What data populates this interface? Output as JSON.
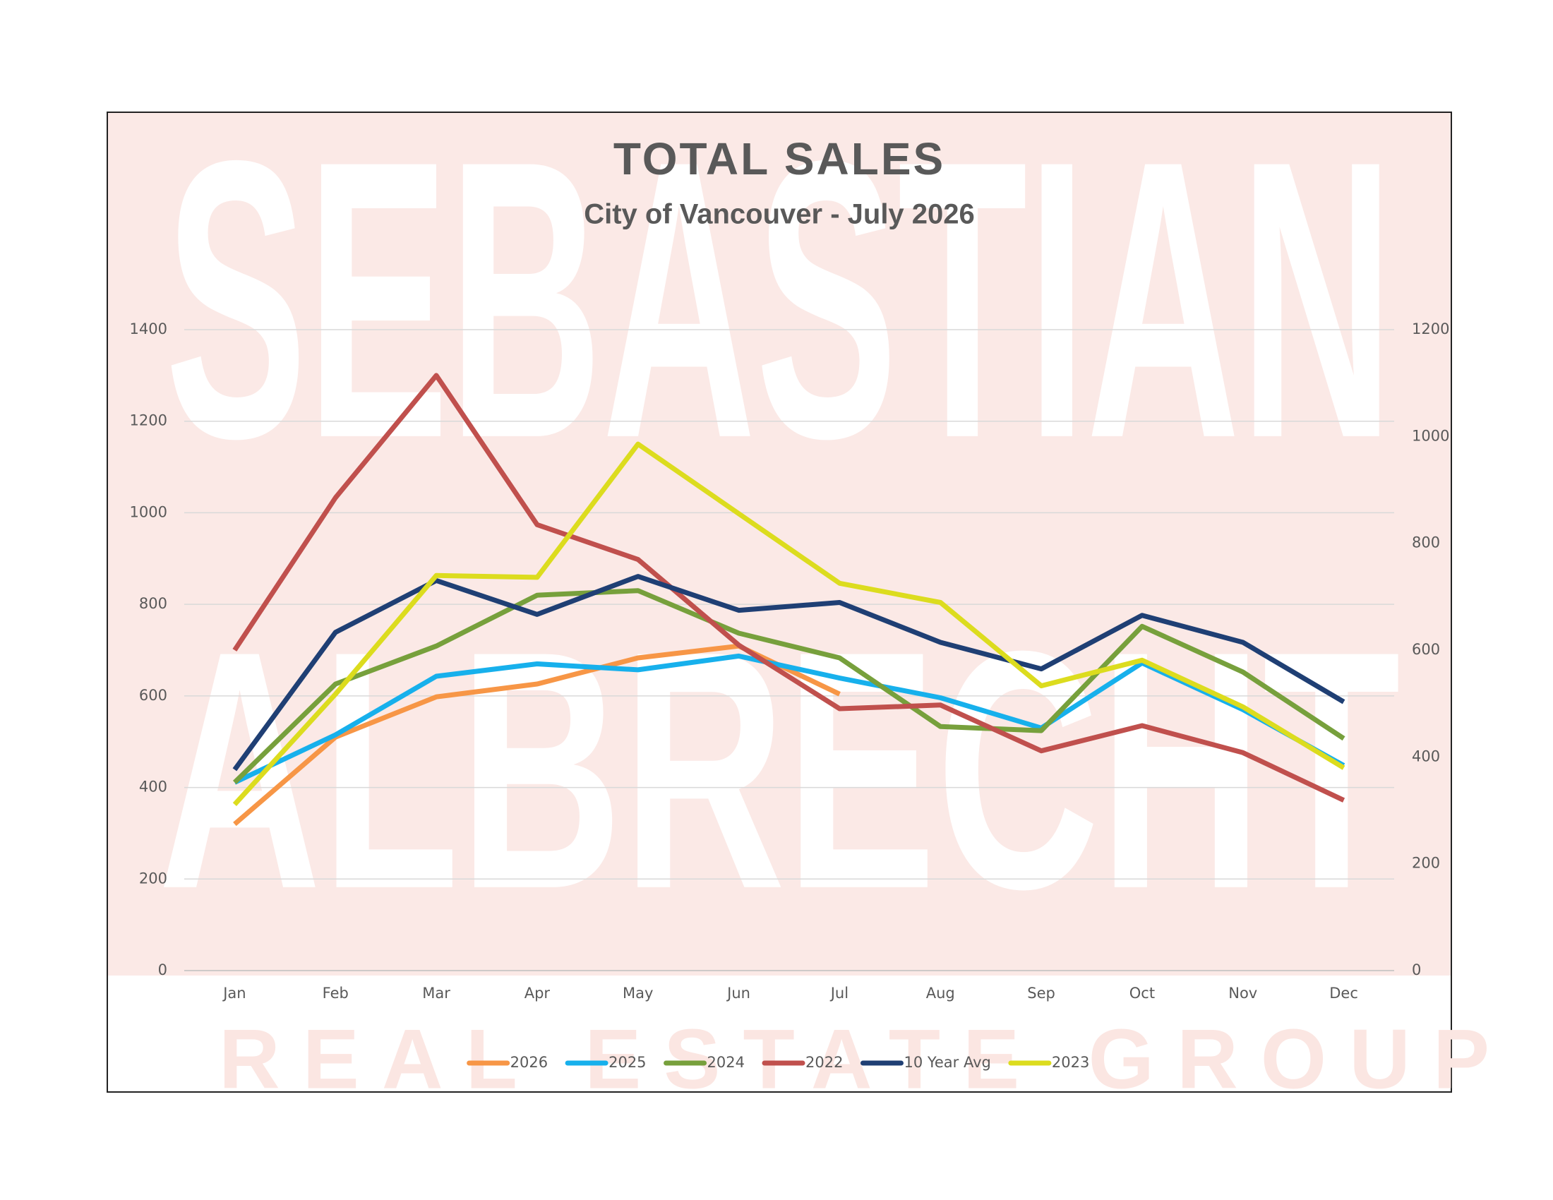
{
  "chart_data": {
    "type": "line",
    "title": "TOTAL SALES",
    "subtitle": "City of Vancouver - July 2026",
    "watermark": [
      "SEBASTIAN",
      "ALBRECHT",
      "REAL ESTATE GROUP"
    ],
    "categories": [
      "Jan",
      "Feb",
      "Mar",
      "Apr",
      "May",
      "Jun",
      "Jul",
      "Aug",
      "Sep",
      "Oct",
      "Nov",
      "Dec"
    ],
    "series": [
      {
        "name": "2026",
        "color": "#f79646",
        "values": [
          320,
          510,
          598,
          626,
          683,
          709,
          604,
          null,
          null,
          null,
          null,
          null
        ]
      },
      {
        "name": "2025",
        "color": "#17b0ec",
        "values": [
          411,
          515,
          643,
          670,
          657,
          687,
          639,
          596,
          530,
          672,
          570,
          448
        ]
      },
      {
        "name": "2024",
        "color": "#77a03c",
        "values": [
          411,
          626,
          709,
          820,
          830,
          737,
          683,
          533,
          524,
          752,
          652,
          507
        ]
      },
      {
        "name": "2022",
        "color": "#c0504d",
        "values": [
          700,
          1033,
          1300,
          974,
          898,
          711,
          572,
          580,
          480,
          535,
          476,
          372
        ]
      },
      {
        "name": "10 Year Avg",
        "color": "#1f3f74",
        "values": [
          439,
          739,
          852,
          778,
          861,
          787,
          804,
          717,
          659,
          776,
          717,
          587
        ]
      },
      {
        "name": "2023",
        "color": "#dcdc1e",
        "values": [
          363,
          604,
          863,
          859,
          1150,
          998,
          846,
          804,
          622,
          678,
          576,
          443
        ]
      }
    ],
    "ylim": [
      0,
      1400
    ],
    "yticks": [
      0,
      200,
      400,
      600,
      800,
      1000,
      1200,
      1400
    ],
    "y2lim": [
      0,
      1200
    ],
    "y2ticks": [
      0,
      200,
      400,
      600,
      800,
      1000,
      1200
    ],
    "grid": true,
    "legend": "bottom"
  }
}
